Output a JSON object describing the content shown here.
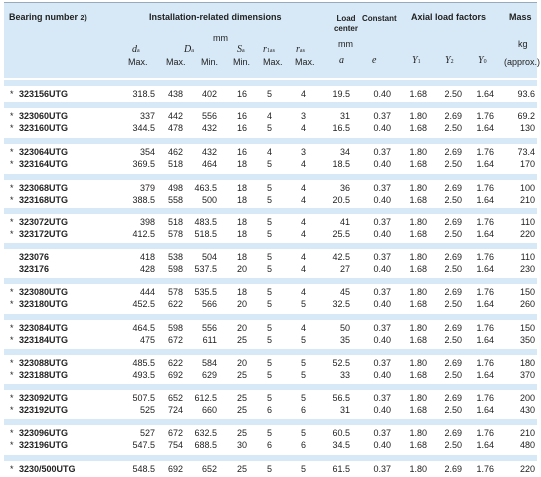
{
  "header": {
    "bearing_number": "Bearing number",
    "footnote": "2)",
    "installation": "Installation-related dimensions",
    "unit_mm": "mm",
    "load_center": "Load center",
    "load_center_unit": "mm",
    "constant": "Constant",
    "axial": "Axial load factors",
    "mass": "Mass",
    "mass_unit": "kg",
    "col_da": "d",
    "col_da_sub": "a",
    "col_Da": "D",
    "col_Da_sub": "a",
    "col_Sa": "S",
    "col_Sa_sub": "a",
    "col_r1as": "r",
    "col_r1as_sub": "1as",
    "col_ras": "r",
    "col_ras_sub": "as",
    "col_a": "a",
    "col_e": "e",
    "col_Y1": "Y",
    "col_Y1_sub": "1",
    "col_Y2": "Y",
    "col_Y2_sub": "2",
    "col_Y0": "Y",
    "col_Y0_sub": "0",
    "max": "Max.",
    "min": "Min.",
    "approx": "(approx.)"
  },
  "rows": [
    {
      "star": "*",
      "des": "323156UTG",
      "da": "318.5",
      "Da_max": "438",
      "Da_min": "402",
      "Sa": "16",
      "r1as": "5",
      "ras": "4",
      "a": "19.5",
      "e": "0.40",
      "Y1": "1.68",
      "Y2": "2.50",
      "Y0": "1.64",
      "mass": "93.6"
    },
    {
      "star": "*",
      "des": "323060UTG",
      "da": "337",
      "Da_max": "442",
      "Da_min": "556",
      "Sa": "16",
      "r1as": "4",
      "ras": "3",
      "a": "31",
      "e": "0.37",
      "Y1": "1.80",
      "Y2": "2.69",
      "Y0": "1.76",
      "mass": "69.2"
    },
    {
      "star": "*",
      "des": "323160UTG",
      "da": "344.5",
      "Da_max": "478",
      "Da_min": "432",
      "Sa": "16",
      "r1as": "5",
      "ras": "4",
      "a": "16.5",
      "e": "0.40",
      "Y1": "1.68",
      "Y2": "2.50",
      "Y0": "1.64",
      "mass": "130"
    },
    {
      "star": "*",
      "des": "323064UTG",
      "da": "354",
      "Da_max": "462",
      "Da_min": "432",
      "Sa": "16",
      "r1as": "4",
      "ras": "3",
      "a": "34",
      "e": "0.37",
      "Y1": "1.80",
      "Y2": "2.69",
      "Y0": "1.76",
      "mass": "73.4"
    },
    {
      "star": "*",
      "des": "323164UTG",
      "da": "369.5",
      "Da_max": "518",
      "Da_min": "464",
      "Sa": "18",
      "r1as": "5",
      "ras": "4",
      "a": "18.5",
      "e": "0.40",
      "Y1": "1.68",
      "Y2": "2.50",
      "Y0": "1.64",
      "mass": "170"
    },
    {
      "star": "*",
      "des": "323068UTG",
      "da": "379",
      "Da_max": "498",
      "Da_min": "463.5",
      "Sa": "18",
      "r1as": "5",
      "ras": "4",
      "a": "36",
      "e": "0.37",
      "Y1": "1.80",
      "Y2": "2.69",
      "Y0": "1.76",
      "mass": "100"
    },
    {
      "star": "*",
      "des": "323168UTG",
      "da": "388.5",
      "Da_max": "558",
      "Da_min": "500",
      "Sa": "18",
      "r1as": "5",
      "ras": "4",
      "a": "20.5",
      "e": "0.40",
      "Y1": "1.68",
      "Y2": "2.50",
      "Y0": "1.64",
      "mass": "210"
    },
    {
      "star": "*",
      "des": "323072UTG",
      "da": "398",
      "Da_max": "518",
      "Da_min": "483.5",
      "Sa": "18",
      "r1as": "5",
      "ras": "4",
      "a": "41",
      "e": "0.37",
      "Y1": "1.80",
      "Y2": "2.69",
      "Y0": "1.76",
      "mass": "110"
    },
    {
      "star": "*",
      "des": "323172UTG",
      "da": "412.5",
      "Da_max": "578",
      "Da_min": "518.5",
      "Sa": "18",
      "r1as": "5",
      "ras": "4",
      "a": "25.5",
      "e": "0.40",
      "Y1": "1.68",
      "Y2": "2.50",
      "Y0": "1.64",
      "mass": "220"
    },
    {
      "star": "",
      "des": "323076",
      "da": "418",
      "Da_max": "538",
      "Da_min": "504",
      "Sa": "18",
      "r1as": "5",
      "ras": "4",
      "a": "42.5",
      "e": "0.37",
      "Y1": "1.80",
      "Y2": "2.69",
      "Y0": "1.76",
      "mass": "110"
    },
    {
      "star": "",
      "des": "323176",
      "da": "428",
      "Da_max": "598",
      "Da_min": "537.5",
      "Sa": "20",
      "r1as": "5",
      "ras": "4",
      "a": "27",
      "e": "0.40",
      "Y1": "1.68",
      "Y2": "2.50",
      "Y0": "1.64",
      "mass": "230"
    },
    {
      "star": "*",
      "des": "323080UTG",
      "da": "444",
      "Da_max": "578",
      "Da_min": "535.5",
      "Sa": "18",
      "r1as": "5",
      "ras": "4",
      "a": "45",
      "e": "0.37",
      "Y1": "1.80",
      "Y2": "2.69",
      "Y0": "1.76",
      "mass": "150"
    },
    {
      "star": "*",
      "des": "323180UTG",
      "da": "452.5",
      "Da_max": "622",
      "Da_min": "566",
      "Sa": "20",
      "r1as": "5",
      "ras": "5",
      "a": "32.5",
      "e": "0.40",
      "Y1": "1.68",
      "Y2": "2.50",
      "Y0": "1.64",
      "mass": "260"
    },
    {
      "star": "*",
      "des": "323084UTG",
      "da": "464.5",
      "Da_max": "598",
      "Da_min": "556",
      "Sa": "20",
      "r1as": "5",
      "ras": "4",
      "a": "50",
      "e": "0.37",
      "Y1": "1.80",
      "Y2": "2.69",
      "Y0": "1.76",
      "mass": "150"
    },
    {
      "star": "*",
      "des": "323184UTG",
      "da": "475",
      "Da_max": "672",
      "Da_min": "611",
      "Sa": "25",
      "r1as": "5",
      "ras": "5",
      "a": "35",
      "e": "0.40",
      "Y1": "1.68",
      "Y2": "2.50",
      "Y0": "1.64",
      "mass": "350"
    },
    {
      "star": "*",
      "des": "323088UTG",
      "da": "485.5",
      "Da_max": "622",
      "Da_min": "584",
      "Sa": "20",
      "r1as": "5",
      "ras": "5",
      "a": "52.5",
      "e": "0.37",
      "Y1": "1.80",
      "Y2": "2.69",
      "Y0": "1.76",
      "mass": "180"
    },
    {
      "star": "*",
      "des": "323188UTG",
      "da": "493.5",
      "Da_max": "692",
      "Da_min": "629",
      "Sa": "25",
      "r1as": "5",
      "ras": "5",
      "a": "33",
      "e": "0.40",
      "Y1": "1.68",
      "Y2": "2.50",
      "Y0": "1.64",
      "mass": "370"
    },
    {
      "star": "*",
      "des": "323092UTG",
      "da": "507.5",
      "Da_max": "652",
      "Da_min": "612.5",
      "Sa": "25",
      "r1as": "5",
      "ras": "5",
      "a": "56.5",
      "e": "0.37",
      "Y1": "1.80",
      "Y2": "2.69",
      "Y0": "1.76",
      "mass": "200"
    },
    {
      "star": "*",
      "des": "323192UTG",
      "da": "525",
      "Da_max": "724",
      "Da_min": "660",
      "Sa": "25",
      "r1as": "6",
      "ras": "6",
      "a": "31",
      "e": "0.40",
      "Y1": "1.68",
      "Y2": "2.50",
      "Y0": "1.64",
      "mass": "430"
    },
    {
      "star": "*",
      "des": "323096UTG",
      "da": "527",
      "Da_max": "672",
      "Da_min": "632.5",
      "Sa": "25",
      "r1as": "5",
      "ras": "5",
      "a": "60.5",
      "e": "0.37",
      "Y1": "1.80",
      "Y2": "2.69",
      "Y0": "1.76",
      "mass": "210"
    },
    {
      "star": "*",
      "des": "323196UTG",
      "da": "547.5",
      "Da_max": "754",
      "Da_min": "688.5",
      "Sa": "30",
      "r1as": "6",
      "ras": "6",
      "a": "34.5",
      "e": "0.40",
      "Y1": "1.68",
      "Y2": "2.50",
      "Y0": "1.64",
      "mass": "480"
    },
    {
      "star": "*",
      "des": "3230/500UTG",
      "da": "548.5",
      "Da_max": "692",
      "Da_min": "652",
      "Sa": "25",
      "r1as": "5",
      "ras": "5",
      "a": "61.5",
      "e": "0.37",
      "Y1": "1.80",
      "Y2": "2.69",
      "Y0": "1.76",
      "mass": "220"
    }
  ]
}
